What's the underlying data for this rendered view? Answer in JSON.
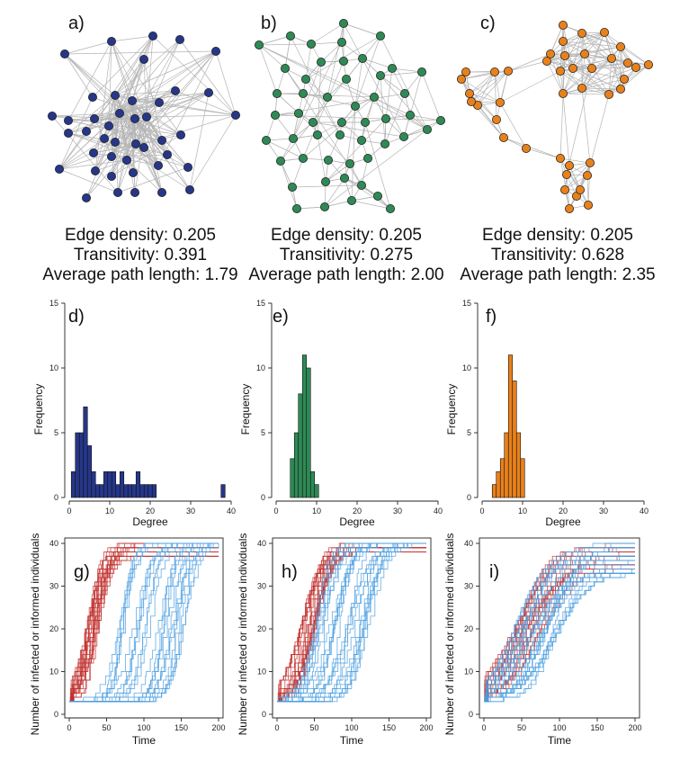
{
  "panels": {
    "network_labels": [
      "a)",
      "b)",
      "c)"
    ],
    "hist_labels": [
      "d)",
      "e)",
      "f)"
    ],
    "ts_labels": [
      "g)",
      "h)",
      "i)"
    ]
  },
  "stats": [
    {
      "edge_density": "Edge density: 0.205",
      "transitivity": "Transitivity: 0.391",
      "path_length": "Average path length: 1.79"
    },
    {
      "edge_density": "Edge density: 0.205",
      "transitivity": "Transitivity: 0.275",
      "path_length": "Average path length: 2.00"
    },
    {
      "edge_density": "Edge density: 0.205",
      "transitivity": "Transitivity: 0.628",
      "path_length": "Average path length: 2.35"
    }
  ],
  "colors": {
    "net_a": "#26378a",
    "net_b": "#2e8a55",
    "net_c": "#e9811b",
    "edge": "#b4b4b4",
    "red_curve": "#c0302e",
    "blue_curve": "#4a9ee0",
    "axis": "#222222"
  },
  "chart_data": [
    {
      "type": "bar",
      "panel": "d)",
      "title": "",
      "xlabel": "Degree",
      "ylabel": "Frequency",
      "xlim": [
        0,
        40
      ],
      "ylim": [
        0,
        15
      ],
      "xticks": [
        "0",
        "10",
        "20",
        "30",
        "40"
      ],
      "yticks": [
        "0",
        "5",
        "10",
        "15"
      ],
      "bins": [
        1,
        2,
        3,
        4,
        5,
        6,
        7,
        8,
        9,
        10,
        11,
        12,
        13,
        14,
        15,
        16,
        17,
        18,
        19,
        20,
        21,
        38
      ],
      "values": [
        2,
        5,
        5,
        7,
        4,
        2,
        1,
        1,
        2,
        2,
        2,
        1,
        2,
        1,
        1,
        1,
        2,
        1,
        1,
        1,
        1,
        1
      ]
    },
    {
      "type": "bar",
      "panel": "e)",
      "title": "",
      "xlabel": "Degree",
      "ylabel": "Frequency",
      "xlim": [
        0,
        40
      ],
      "ylim": [
        0,
        15
      ],
      "xticks": [
        "0",
        "10",
        "20",
        "30",
        "40"
      ],
      "yticks": [
        "0",
        "5",
        "10",
        "15"
      ],
      "bins": [
        4,
        5,
        6,
        7,
        8,
        9,
        10
      ],
      "values": [
        3,
        5,
        8,
        11,
        10,
        2,
        1
      ]
    },
    {
      "type": "bar",
      "panel": "f)",
      "title": "",
      "xlabel": "Degree",
      "ylabel": "Frequency",
      "xlim": [
        0,
        40
      ],
      "ylim": [
        0,
        15
      ],
      "xticks": [
        "0",
        "10",
        "20",
        "30",
        "40"
      ],
      "yticks": [
        "0",
        "5",
        "10",
        "15"
      ],
      "bins": [
        3,
        4,
        5,
        6,
        7,
        8,
        9,
        10
      ],
      "values": [
        1,
        2,
        3,
        5,
        11,
        9,
        5,
        3
      ]
    },
    {
      "type": "line",
      "panel": "g)",
      "xlabel": "Time",
      "ylabel": "Number of infected or informed individuals",
      "xlim": [
        0,
        200
      ],
      "ylim": [
        0,
        40
      ],
      "xticks": [
        "0",
        "50",
        "100",
        "150",
        "200"
      ],
      "yticks": [
        "0",
        "10",
        "20",
        "30",
        "40"
      ],
      "series_groups": [
        {
          "name": "red",
          "count": 20,
          "start": 3,
          "end_range": [
            37,
            40
          ],
          "t_half_range": [
            22,
            38
          ],
          "spread": 10
        },
        {
          "name": "blue",
          "count": 25,
          "start": 3,
          "end_range": [
            40,
            40
          ],
          "t_half_range": [
            60,
            155
          ],
          "spread": 9
        }
      ]
    },
    {
      "type": "line",
      "panel": "h)",
      "xlabel": "Time",
      "ylabel": "Number of infected or informed individuals",
      "xlim": [
        0,
        200
      ],
      "ylim": [
        0,
        40
      ],
      "xticks": [
        "0",
        "50",
        "100",
        "150",
        "200"
      ],
      "yticks": [
        "0",
        "10",
        "20",
        "30",
        "40"
      ],
      "series_groups": [
        {
          "name": "red",
          "count": 20,
          "start": 3,
          "end_range": [
            38,
            40
          ],
          "t_half_range": [
            30,
            52
          ],
          "spread": 12
        },
        {
          "name": "blue",
          "count": 25,
          "start": 3,
          "end_range": [
            40,
            40
          ],
          "t_half_range": [
            45,
            125
          ],
          "spread": 12
        }
      ]
    },
    {
      "type": "line",
      "panel": "i)",
      "xlabel": "Time",
      "ylabel": "Number of infected or informed individuals",
      "xlim": [
        0,
        200
      ],
      "ylim": [
        0,
        40
      ],
      "xticks": [
        "0",
        "50",
        "100",
        "150",
        "200"
      ],
      "yticks": [
        "0",
        "10",
        "20",
        "30",
        "40"
      ],
      "series_groups": [
        {
          "name": "red",
          "count": 20,
          "start": 3,
          "end_range": [
            34,
            40
          ],
          "t_half_range": [
            40,
            75
          ],
          "spread": 22
        },
        {
          "name": "blue",
          "count": 25,
          "start": 3,
          "end_range": [
            32,
            40
          ],
          "t_half_range": [
            35,
            95
          ],
          "spread": 22
        }
      ]
    }
  ]
}
